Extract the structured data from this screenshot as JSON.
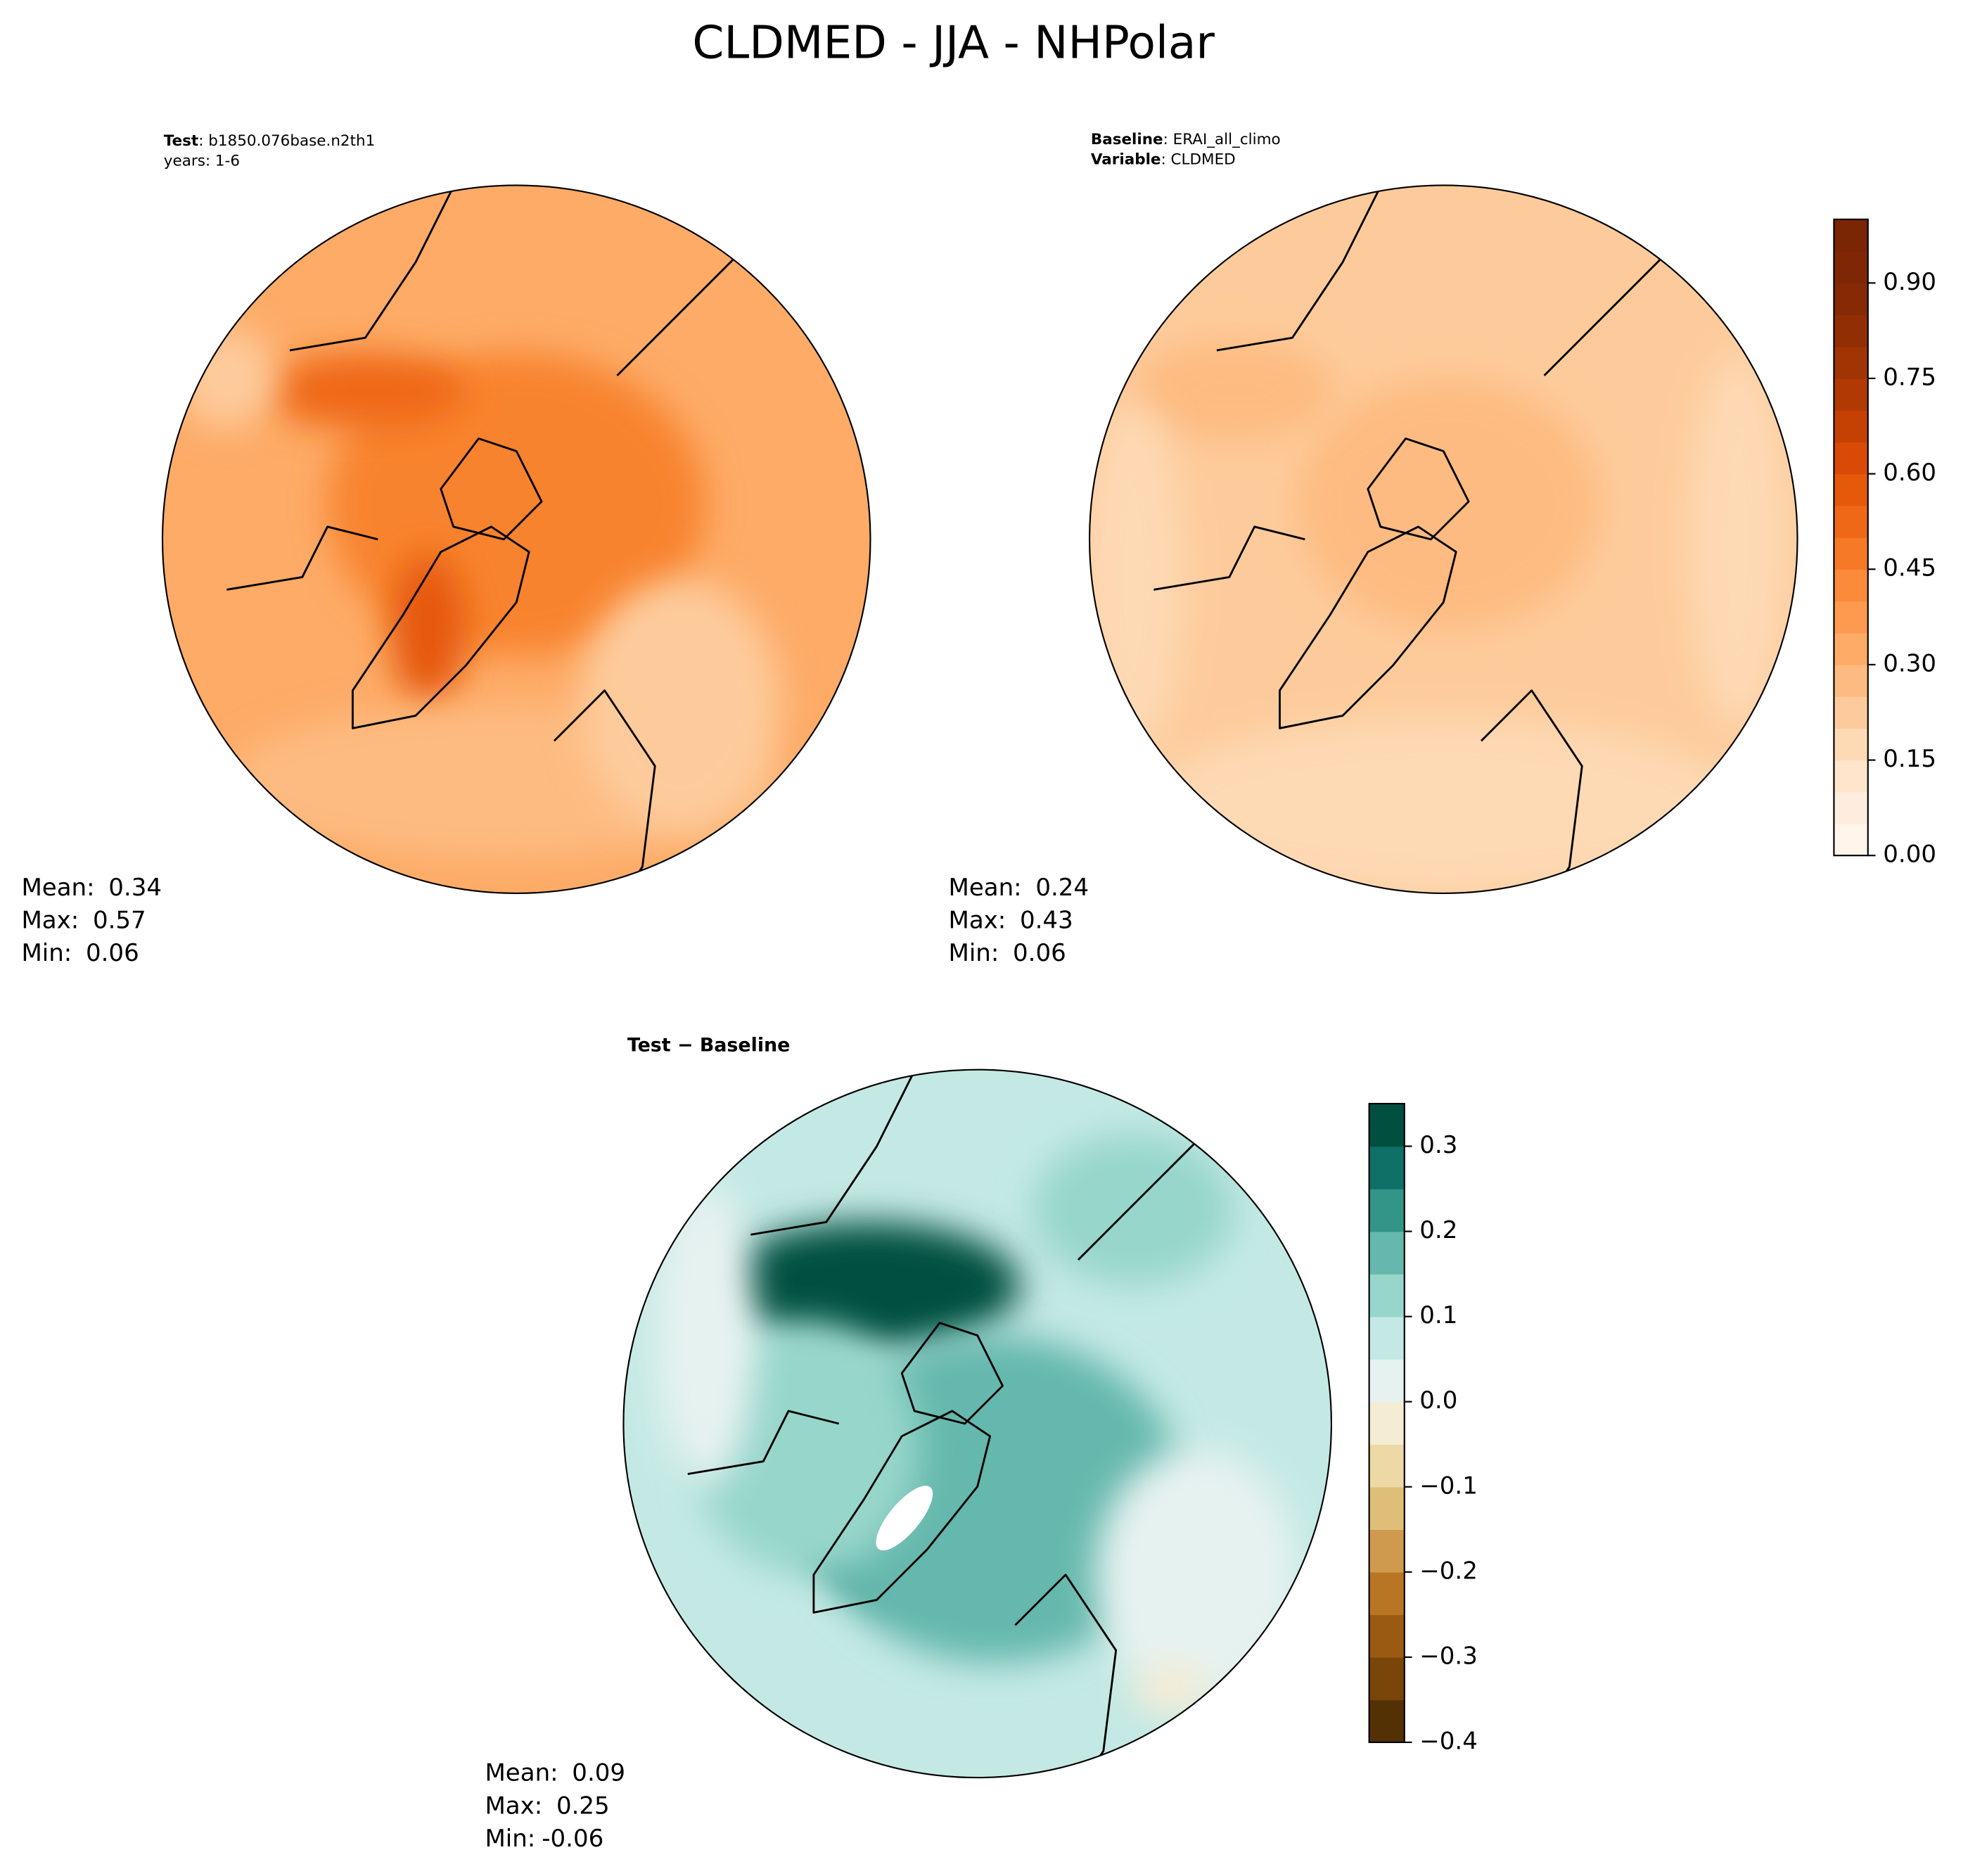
{
  "title": "CLDMED - JJA - NHPolar",
  "panels": [
    {
      "header": [
        {
          "key": "Test",
          "text": ": b1850.076base.n2th1"
        },
        {
          "text": "years: 1-6"
        }
      ],
      "stats": [
        {
          "label": "Mean:",
          "value": 0.34
        },
        {
          "label": "Max:",
          "value": 0.57
        },
        {
          "label": "Min:",
          "value": 0.06
        }
      ]
    },
    {
      "header": [
        {
          "key": "Baseline",
          "text": ": ERAI_all_climo"
        },
        {
          "key": "Variable",
          "text": ": CLDMED"
        }
      ],
      "stats": [
        {
          "label": "Mean:",
          "value": 0.24
        },
        {
          "label": "Max:",
          "value": 0.43
        },
        {
          "label": "Min:",
          "value": 0.06
        }
      ]
    },
    {
      "header": [
        {
          "key": "Test − Baseline"
        }
      ],
      "stats": [
        {
          "label": "Mean:",
          "value": 0.09
        },
        {
          "label": "Max:",
          "value": 0.25
        },
        {
          "label": "Min:",
          "value": -0.06
        }
      ]
    }
  ],
  "colorbars": [
    {
      "ylim": [
        0,
        1.0
      ],
      "yticks": [
        {
          "value": 0,
          "label": "0.00"
        },
        {
          "value": 0.15,
          "label": "0.15"
        },
        {
          "value": 0.3,
          "label": "0.30"
        },
        {
          "value": 0.45,
          "label": "0.45"
        },
        {
          "value": 0.6,
          "label": "0.60"
        },
        {
          "value": 0.75,
          "label": "0.75"
        },
        {
          "value": 0.9,
          "label": "0.90"
        }
      ],
      "colors": [
        "#fff5eb",
        "#feedde",
        "#fee5cb",
        "#fdd9b4",
        "#fdcb9b",
        "#fdbb81",
        "#fdab67",
        "#fd9a4f",
        "#fb8a3a",
        "#f67928",
        "#ef6818",
        "#e5590b",
        "#d84a05",
        "#c44103",
        "#b13903",
        "#a13403",
        "#922e03",
        "#852a04",
        "#7f2704",
        "#7a2504"
      ]
    },
    {
      "ylim": [
        -0.4,
        0.35
      ],
      "yticks": [
        {
          "value": -0.4,
          "label": "−0.4"
        },
        {
          "value": -0.3,
          "label": "−0.3"
        },
        {
          "value": -0.2,
          "label": "−0.2"
        },
        {
          "value": -0.1,
          "label": "−0.1"
        },
        {
          "value": 0,
          "label": "0.0"
        },
        {
          "value": 0.1,
          "label": "0.1"
        },
        {
          "value": 0.2,
          "label": "0.2"
        },
        {
          "value": 0.3,
          "label": "0.3"
        }
      ],
      "colors": [
        "#543005",
        "#7a4508",
        "#9a5a12",
        "#b87625",
        "#cf9a4d",
        "#dfbe78",
        "#ecd9a5",
        "#f5ecd4",
        "#e6f2f0",
        "#c4e9e4",
        "#97d6cb",
        "#65b8ad",
        "#339488",
        "#0f7068",
        "#01503f"
      ]
    }
  ]
}
